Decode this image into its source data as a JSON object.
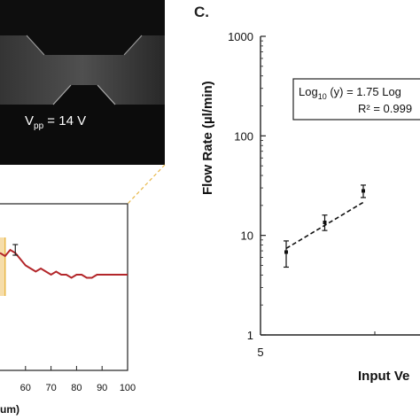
{
  "panel_c_label": "C.",
  "micrograph": {
    "vpp_main": "V",
    "vpp_sub": "pp",
    "vpp_value": " = 14 V"
  },
  "colors": {
    "flow_line": "#b3262a",
    "highlight": "#f5d9a0",
    "zoom_lines": "#e8b84a"
  },
  "chart_data": [
    {
      "type": "line",
      "title": "",
      "xlabel": "",
      "xlabel_fragment": "um)",
      "ylabel": "",
      "x_ticks": [
        "60",
        "70",
        "80",
        "90",
        "100"
      ],
      "xlim": [
        50,
        100
      ],
      "series": [
        {
          "x": [
            50,
            52,
            54,
            56,
            58,
            60,
            62,
            64,
            66,
            68,
            70,
            72,
            74,
            76,
            78,
            80,
            82,
            84,
            86,
            88,
            90,
            92,
            94,
            96,
            98,
            100
          ],
          "y": [
            0.97,
            0.96,
            0.98,
            0.97,
            0.95,
            0.93,
            0.92,
            0.91,
            0.92,
            0.91,
            0.9,
            0.91,
            0.9,
            0.9,
            0.89,
            0.9,
            0.9,
            0.89,
            0.89,
            0.9,
            0.9,
            0.9,
            0.9,
            0.9,
            0.9,
            0.9
          ]
        }
      ],
      "error_bar": {
        "x": 56,
        "y": 0.98
      }
    },
    {
      "type": "scatter",
      "title": "",
      "xlabel": "Input Ve",
      "ylabel": "Flow Rate  (µl/min)",
      "y_scale": "log",
      "ylim": [
        1,
        1000
      ],
      "y_ticks": [
        "1000",
        "100",
        "10",
        "1"
      ],
      "x_ticks": [
        "5"
      ],
      "grid": false,
      "equation_line1_prefix": "Log",
      "equation_line1_sub": "10",
      "equation_line1_suffix": " (y) = 1.75 Log",
      "equation_line2": "R² = 0.999",
      "series": [
        {
          "x": [
            7,
            10,
            13
          ],
          "y": [
            6.8,
            13.5,
            28
          ],
          "y_err_low": [
            4.8,
            11.2,
            24
          ],
          "y_err_high": [
            8.8,
            16,
            32
          ]
        }
      ],
      "fit": {
        "x": [
          7,
          13
        ],
        "y": [
          7.4,
          21.5
        ],
        "style": "dashed"
      }
    }
  ]
}
